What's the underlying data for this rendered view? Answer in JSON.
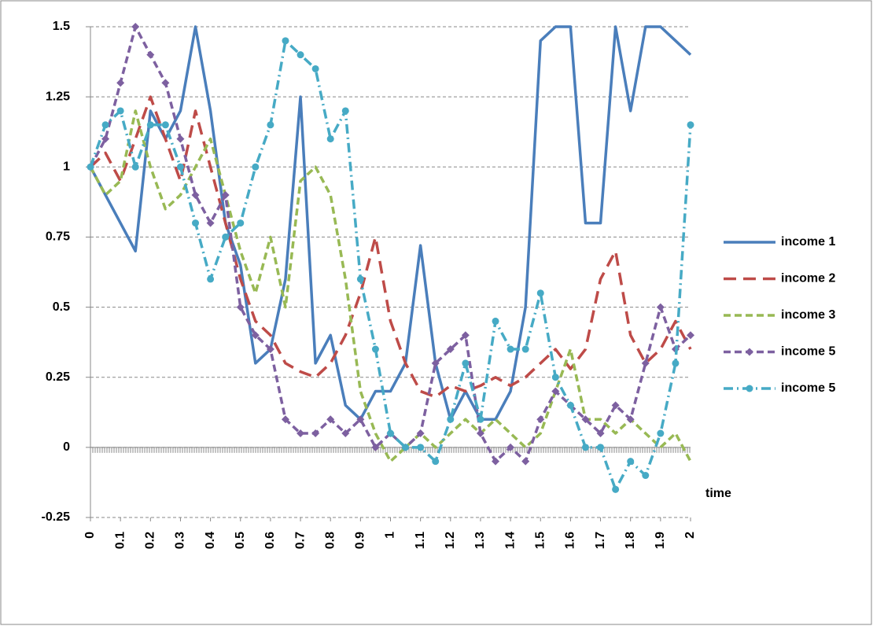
{
  "chart_data": {
    "type": "line",
    "x_label": "time",
    "x": [
      0,
      0.05,
      0.1,
      0.15,
      0.2,
      0.25,
      0.3,
      0.35,
      0.4,
      0.45,
      0.5,
      0.55,
      0.6,
      0.65,
      0.7,
      0.75,
      0.8,
      0.85,
      0.9,
      0.95,
      1,
      1.05,
      1.1,
      1.15,
      1.2,
      1.25,
      1.3,
      1.35,
      1.4,
      1.45,
      1.5,
      1.55,
      1.6,
      1.65,
      1.7,
      1.75,
      1.8,
      1.85,
      1.9,
      1.95,
      2
    ],
    "xlim": [
      0,
      2
    ],
    "xticks": [
      0,
      0.1,
      0.2,
      0.3,
      0.4,
      0.5,
      0.6,
      0.7,
      0.8,
      0.9,
      1,
      1.1,
      1.2,
      1.3,
      1.4,
      1.5,
      1.6,
      1.7,
      1.8,
      1.9,
      2
    ],
    "ylim": [
      -0.25,
      1.5
    ],
    "yticks": [
      -0.25,
      0,
      0.25,
      0.5,
      0.75,
      1,
      1.25,
      1.5
    ],
    "grid": true,
    "legend": "right",
    "series": [
      {
        "name": "income 1",
        "color": "#4a7ebb",
        "line_style": "solid",
        "marker": "none",
        "values": [
          1.0,
          0.9,
          0.8,
          0.7,
          1.2,
          1.1,
          1.2,
          1.5,
          1.2,
          0.8,
          0.65,
          0.3,
          0.35,
          0.6,
          1.25,
          0.3,
          0.4,
          0.15,
          0.1,
          0.2,
          0.2,
          0.3,
          0.72,
          0.3,
          0.1,
          0.2,
          0.1,
          0.1,
          0.2,
          0.5,
          1.45,
          1.5,
          1.5,
          0.8,
          0.8,
          1.5,
          1.2,
          1.5,
          1.5,
          1.45,
          1.4
        ]
      },
      {
        "name": "income 2",
        "color": "#be4b48",
        "line_style": "long-dash",
        "marker": "none",
        "values": [
          1.0,
          1.05,
          0.95,
          1.1,
          1.25,
          1.1,
          0.95,
          1.2,
          1.0,
          0.8,
          0.6,
          0.45,
          0.4,
          0.3,
          0.27,
          0.25,
          0.3,
          0.4,
          0.55,
          0.75,
          0.45,
          0.3,
          0.2,
          0.18,
          0.22,
          0.2,
          0.22,
          0.25,
          0.22,
          0.25,
          0.3,
          0.35,
          0.28,
          0.35,
          0.6,
          0.7,
          0.4,
          0.3,
          0.35,
          0.45,
          0.35
        ]
      },
      {
        "name": "income 3",
        "color": "#98b954",
        "line_style": "dash",
        "marker": "none",
        "values": [
          1.0,
          0.9,
          0.95,
          1.2,
          1.0,
          0.85,
          0.9,
          1.0,
          1.1,
          0.9,
          0.7,
          0.55,
          0.75,
          0.5,
          0.95,
          1.0,
          0.9,
          0.6,
          0.2,
          0.05,
          -0.05,
          0,
          0.05,
          0,
          0.05,
          0.1,
          0.05,
          0.1,
          0.05,
          0,
          0.05,
          0.2,
          0.35,
          0.1,
          0.1,
          0.05,
          0.1,
          0.05,
          0,
          0.05,
          -0.05
        ]
      },
      {
        "name": "income 5",
        "color": "#7d60a0",
        "line_style": "dash",
        "marker": "diamond",
        "values": [
          1.0,
          1.1,
          1.3,
          1.5,
          1.4,
          1.3,
          1.1,
          0.9,
          0.8,
          0.9,
          0.5,
          0.4,
          0.35,
          0.1,
          0.05,
          0.05,
          0.1,
          0.05,
          0.1,
          0,
          0.05,
          0,
          0.05,
          0.3,
          0.35,
          0.4,
          0.05,
          -0.05,
          0,
          -0.05,
          0.1,
          0.2,
          0.15,
          0.1,
          0.05,
          0.15,
          0.1,
          0.3,
          0.5,
          0.35,
          0.4
        ]
      },
      {
        "name": "income 5",
        "color": "#46aac5",
        "line_style": "dash-dot",
        "marker": "circle",
        "values": [
          1.0,
          1.15,
          1.2,
          1.0,
          1.15,
          1.15,
          1.0,
          0.8,
          0.6,
          0.75,
          0.8,
          1.0,
          1.15,
          1.45,
          1.4,
          1.35,
          1.1,
          1.2,
          0.6,
          0.35,
          0.05,
          0,
          0,
          -0.05,
          0.1,
          0.3,
          0.1,
          0.45,
          0.35,
          0.35,
          0.55,
          0.25,
          0.15,
          0,
          0,
          -0.15,
          -0.05,
          -0.1,
          0.05,
          0.3,
          1.15
        ]
      }
    ]
  }
}
